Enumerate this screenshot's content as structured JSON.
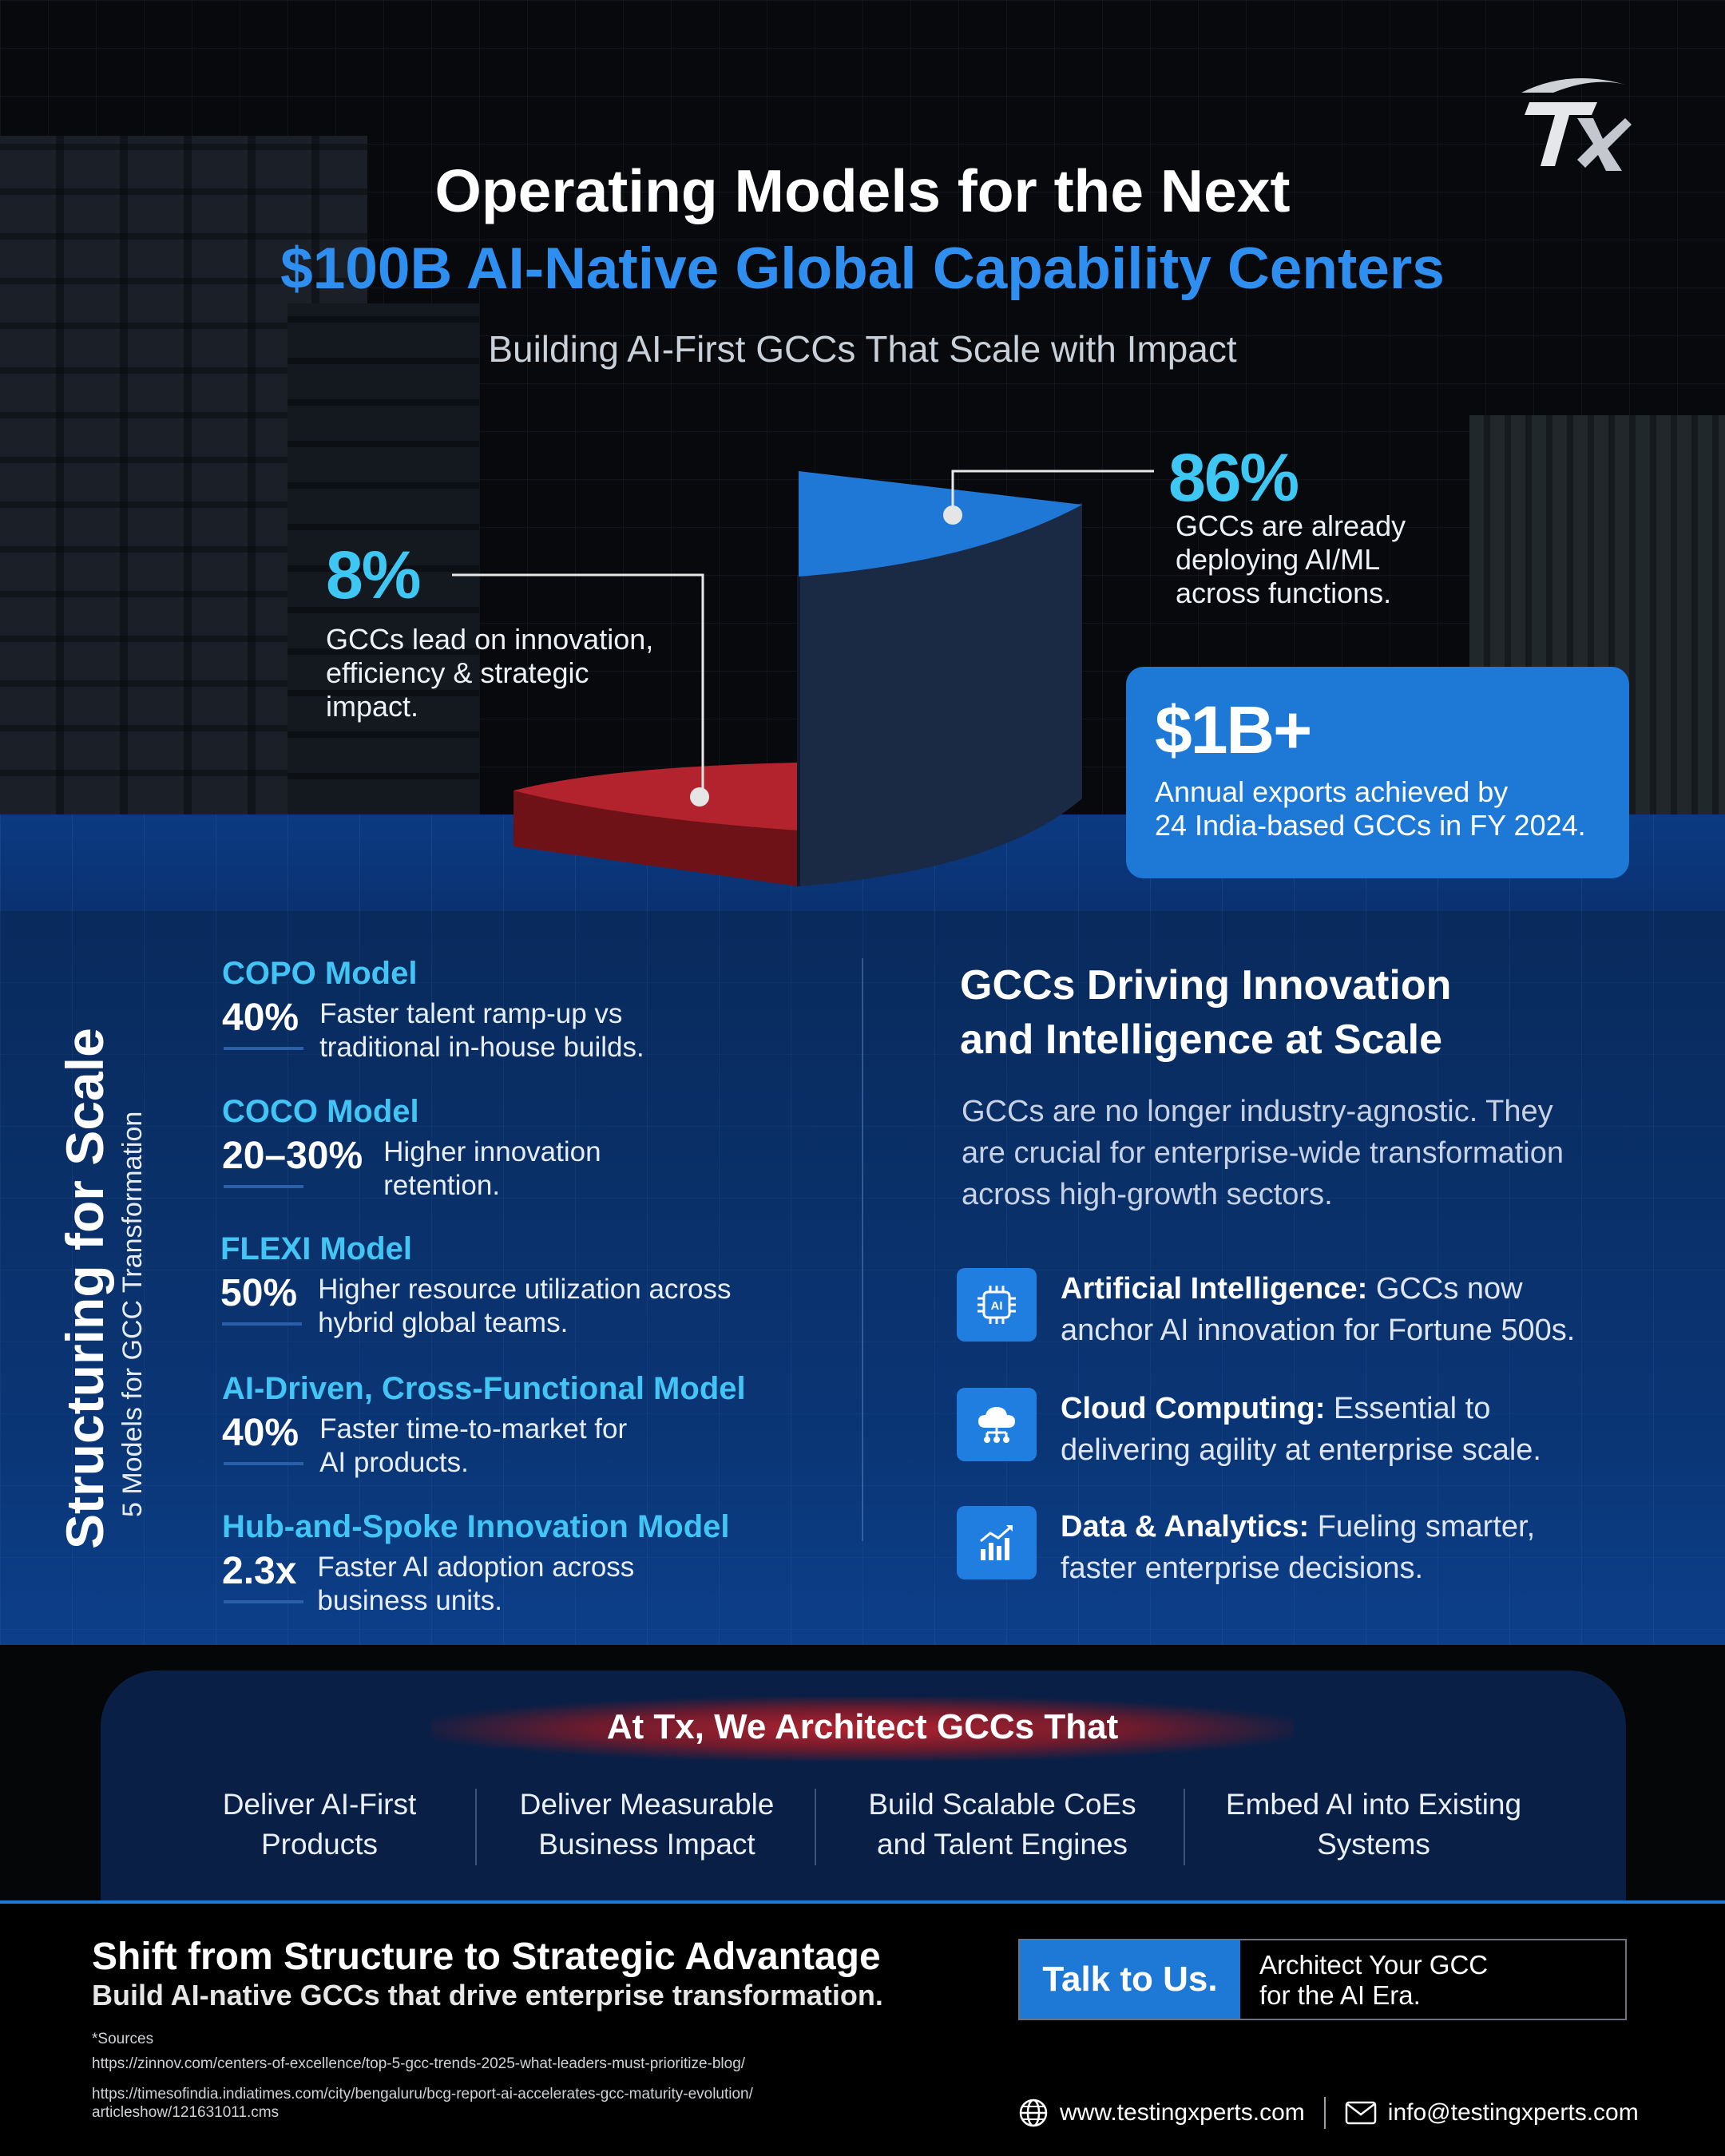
{
  "brand": {
    "logo_text": "TX"
  },
  "header": {
    "title_line1": "Operating Models for the Next",
    "title_line2": "$100B AI-Native Global Capability Centers",
    "subtitle": "Building AI-First GCCs That Scale with Impact"
  },
  "stats": {
    "innovation_leaders": {
      "value": "8%",
      "text_lines": [
        "GCCs lead on innovation,",
        "efficiency & strategic",
        "impact."
      ]
    },
    "ai_ml_adoption": {
      "value": "86%",
      "text_lines": [
        "GCCs are already",
        "deploying AI/ML",
        "across functions."
      ]
    },
    "exports": {
      "value": "$1B+",
      "text_lines": [
        "Annual exports achieved by",
        "24 India-based GCCs in FY 2024."
      ]
    }
  },
  "structuring": {
    "title": "Structuring for Scale",
    "subtitle": "5 Models for GCC Transformation",
    "models": [
      {
        "name": "COPO Model",
        "metric": "40%",
        "desc_lines": [
          "Faster talent ramp-up vs",
          "traditional in-house builds."
        ]
      },
      {
        "name": "COCO Model",
        "metric": "20–30%",
        "desc_lines": [
          "Higher innovation",
          "retention."
        ]
      },
      {
        "name": "FLEXI Model",
        "metric": "50%",
        "desc_lines": [
          "Higher resource utilization across",
          "hybrid global teams."
        ]
      },
      {
        "name": "AI-Driven, Cross-Functional Model",
        "metric": "40%",
        "desc_lines": [
          "Faster time-to-market for",
          "AI products."
        ]
      },
      {
        "name": "Hub-and-Spoke Innovation Model",
        "metric": "2.3x",
        "desc_lines": [
          "Faster AI adoption across",
          "business units."
        ]
      }
    ]
  },
  "driving": {
    "title_lines": [
      "GCCs Driving Innovation",
      "and Intelligence at Scale"
    ],
    "body_lines": [
      "GCCs are no longer industry-agnostic. They",
      "are crucial for enterprise-wide transformation",
      "across high-growth sectors."
    ],
    "sectors": [
      {
        "icon": "ai-chip-icon",
        "name": "Artificial Intelligence:",
        "line1_rest": "GCCs now",
        "line2": "anchor AI innovation for Fortune 500s."
      },
      {
        "icon": "cloud-network-icon",
        "name": "Cloud Computing:",
        "line1_rest": "Essential to",
        "line2": "delivering agility at enterprise scale."
      },
      {
        "icon": "analytics-chart-icon",
        "name": "Data & Analytics:",
        "line1_rest": "Fueling smarter,",
        "line2": "faster enterprise decisions."
      }
    ]
  },
  "architect": {
    "title": "At Tx, We Architect GCCs That",
    "items": [
      {
        "lines": [
          "Deliver AI-First",
          "Products"
        ]
      },
      {
        "lines": [
          "Deliver Measurable",
          "Business Impact"
        ]
      },
      {
        "lines": [
          "Build Scalable CoEs",
          "and Talent Engines"
        ]
      },
      {
        "lines": [
          "Embed AI into Existing",
          "Systems"
        ]
      }
    ]
  },
  "footer": {
    "cta_title": "Shift from Structure to Strategic Advantage",
    "cta_sub": "Build AI-native GCCs that drive enterprise transformation.",
    "button_label": "Talk to Us.",
    "button_text_lines": [
      "Architect Your GCC",
      "for the AI Era."
    ],
    "sources_label": "*Sources",
    "sources": [
      "https://zinnov.com/centers-of-excellence/top-5-gcc-trends-2025-what-leaders-must-prioritize-blog/",
      "https://timesofindia.indiatimes.com/city/bengaluru/bcg-report-ai-accelerates-gcc-maturity-evolution/",
      "articleshow/121631011.cms"
    ],
    "website": "www.testingxperts.com",
    "email": "info@testingxperts.com"
  },
  "colors": {
    "accent_blue": "#1e78d6",
    "title_blue": "#2f8ff0",
    "stat_cyan": "#3fc7f4",
    "pie_red": "#b3232e",
    "navy": "#0a3574"
  }
}
